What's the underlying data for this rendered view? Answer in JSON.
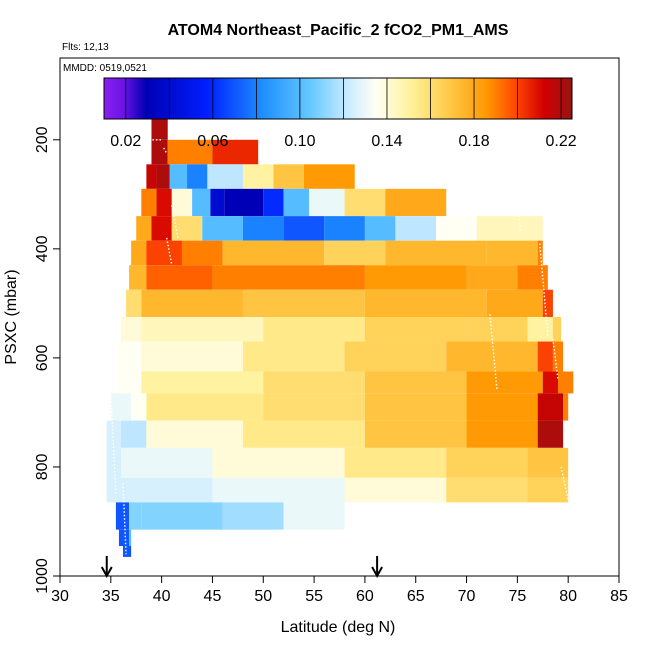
{
  "chart_data": {
    "type": "heatmap",
    "title": "ATOM4 Northeast_Pacific_2 fCO2_PM1_AMS",
    "annotations": {
      "flights": "Flts: 12,13",
      "dates": "MMDD: 0519,0521"
    },
    "xlabel": "Latitude (deg N)",
    "ylabel": "PSXC (mbar)",
    "xlim": [
      30,
      85
    ],
    "ylim": [
      1000,
      50
    ],
    "y_reversed": true,
    "grid": false,
    "x_ticks": [
      30,
      35,
      40,
      45,
      50,
      55,
      60,
      65,
      70,
      75,
      80,
      85
    ],
    "y_ticks": [
      200,
      400,
      600,
      800,
      1000
    ],
    "colorbar": {
      "range": [
        0.01,
        0.225
      ],
      "ticks": [
        0.02,
        0.06,
        0.1,
        0.14,
        0.18,
        0.22
      ],
      "tick_labels": [
        "0.02",
        "0.06",
        "0.10",
        "0.14",
        "0.18",
        "0.22"
      ]
    },
    "arrows_lat": [
      34.6,
      61.2
    ],
    "bands": [
      {
        "p": [
          160,
          200
        ],
        "segments": [
          [
            39.0,
            40.6,
            0.22
          ]
        ]
      },
      {
        "p": [
          200,
          245
        ],
        "segments": [
          [
            39.0,
            40.6,
            0.22
          ],
          [
            40.6,
            42.0,
            0.19
          ],
          [
            42.0,
            45.0,
            0.19
          ],
          [
            45.0,
            49.5,
            0.205
          ]
        ]
      },
      {
        "p": [
          245,
          290
        ],
        "segments": [
          [
            38.5,
            39.5,
            0.215
          ],
          [
            39.5,
            40.8,
            0.22
          ],
          [
            40.8,
            42.5,
            0.1
          ],
          [
            42.5,
            44.5,
            0.08
          ],
          [
            44.5,
            48.0,
            0.12
          ],
          [
            48.0,
            51.0,
            0.15
          ],
          [
            51.0,
            54.0,
            0.17
          ],
          [
            54.0,
            59.0,
            0.185
          ]
        ]
      },
      {
        "p": [
          290,
          340
        ],
        "segments": [
          [
            38.0,
            39.5,
            0.19
          ],
          [
            39.5,
            41.0,
            0.21
          ],
          [
            41.0,
            43.0,
            0.14
          ],
          [
            43.0,
            44.8,
            0.1
          ],
          [
            44.8,
            46.2,
            0.04
          ],
          [
            46.2,
            50.0,
            0.03
          ],
          [
            50.0,
            52.0,
            0.06
          ],
          [
            52.0,
            54.5,
            0.1
          ],
          [
            54.5,
            58.0,
            0.13
          ],
          [
            58.0,
            62.0,
            0.16
          ],
          [
            62.0,
            68.0,
            0.18
          ]
        ]
      },
      {
        "p": [
          340,
          385
        ],
        "segments": [
          [
            37.5,
            39.0,
            0.18
          ],
          [
            39.0,
            41.0,
            0.21
          ],
          [
            41.0,
            44.0,
            0.16
          ],
          [
            44.0,
            48.0,
            0.1
          ],
          [
            48.0,
            52.0,
            0.08
          ],
          [
            52.0,
            56.0,
            0.07
          ],
          [
            56.0,
            60.0,
            0.08
          ],
          [
            60.0,
            63.0,
            0.1
          ],
          [
            63.0,
            67.0,
            0.12
          ],
          [
            67.0,
            71.0,
            0.135
          ],
          [
            71.0,
            77.5,
            0.145
          ]
        ]
      },
      {
        "p": [
          385,
          430
        ],
        "segments": [
          [
            37.0,
            38.5,
            0.18
          ],
          [
            38.5,
            42.0,
            0.2
          ],
          [
            42.0,
            46.0,
            0.19
          ],
          [
            46.0,
            56.0,
            0.175
          ],
          [
            56.0,
            62.0,
            0.165
          ],
          [
            62.0,
            72.0,
            0.175
          ],
          [
            72.0,
            77.0,
            0.175
          ],
          [
            77.0,
            77.5,
            0.19
          ]
        ]
      },
      {
        "p": [
          430,
          475
        ],
        "segments": [
          [
            36.8,
            38.5,
            0.175
          ],
          [
            38.5,
            45.0,
            0.195
          ],
          [
            45.0,
            60.0,
            0.19
          ],
          [
            60.0,
            70.0,
            0.185
          ],
          [
            70.0,
            75.0,
            0.18
          ],
          [
            75.0,
            78.0,
            0.19
          ]
        ]
      },
      {
        "p": [
          475,
          525
        ],
        "segments": [
          [
            36.5,
            38.0,
            0.16
          ],
          [
            38.0,
            48.0,
            0.175
          ],
          [
            48.0,
            60.0,
            0.17
          ],
          [
            60.0,
            72.0,
            0.175
          ],
          [
            72.0,
            77.5,
            0.18
          ],
          [
            77.5,
            78.5,
            0.2
          ]
        ]
      },
      {
        "p": [
          525,
          570
        ],
        "segments": [
          [
            36.0,
            38.0,
            0.14
          ],
          [
            38.0,
            50.0,
            0.145
          ],
          [
            50.0,
            60.0,
            0.155
          ],
          [
            60.0,
            70.0,
            0.165
          ],
          [
            70.0,
            76.0,
            0.165
          ],
          [
            76.0,
            78.5,
            0.15
          ],
          [
            78.5,
            79.3,
            0.165
          ]
        ]
      },
      {
        "p": [
          570,
          625
        ],
        "segments": [
          [
            35.5,
            38.0,
            0.135
          ],
          [
            38.0,
            48.0,
            0.14
          ],
          [
            48.0,
            58.0,
            0.155
          ],
          [
            58.0,
            68.0,
            0.165
          ],
          [
            68.0,
            77.0,
            0.175
          ],
          [
            77.0,
            78.5,
            0.2
          ],
          [
            78.5,
            79.5,
            0.19
          ]
        ]
      },
      {
        "p": [
          625,
          665
        ],
        "segments": [
          [
            35.5,
            38.0,
            0.135
          ],
          [
            38.0,
            50.0,
            0.15
          ],
          [
            50.0,
            60.0,
            0.16
          ],
          [
            60.0,
            70.0,
            0.17
          ],
          [
            70.0,
            77.5,
            0.185
          ],
          [
            77.5,
            79.0,
            0.21
          ],
          [
            79.0,
            80.5,
            0.19
          ]
        ]
      },
      {
        "p": [
          665,
          715
        ],
        "segments": [
          [
            35.0,
            37.0,
            0.13
          ],
          [
            37.0,
            38.5,
            0.135
          ],
          [
            38.5,
            50.0,
            0.155
          ],
          [
            50.0,
            60.0,
            0.16
          ],
          [
            60.0,
            70.0,
            0.17
          ],
          [
            70.0,
            77.0,
            0.185
          ],
          [
            77.0,
            79.5,
            0.215
          ],
          [
            79.5,
            80.0,
            0.19
          ]
        ]
      },
      {
        "p": [
          715,
          765
        ],
        "segments": [
          [
            34.6,
            36.0,
            0.125
          ],
          [
            36.0,
            38.5,
            0.12
          ],
          [
            38.5,
            48.0,
            0.14
          ],
          [
            48.0,
            60.0,
            0.155
          ],
          [
            60.0,
            70.0,
            0.17
          ],
          [
            70.0,
            77.0,
            0.185
          ],
          [
            77.0,
            79.5,
            0.22
          ]
        ]
      },
      {
        "p": [
          765,
          820
        ],
        "segments": [
          [
            34.6,
            36.0,
            0.125
          ],
          [
            36.0,
            45.0,
            0.13
          ],
          [
            45.0,
            58.0,
            0.14
          ],
          [
            58.0,
            68.0,
            0.155
          ],
          [
            68.0,
            76.0,
            0.165
          ],
          [
            76.0,
            80.0,
            0.17
          ]
        ]
      },
      {
        "p": [
          820,
          865
        ],
        "segments": [
          [
            34.6,
            36.0,
            0.125
          ],
          [
            36.0,
            45.0,
            0.125
          ],
          [
            45.0,
            58.0,
            0.13
          ],
          [
            58.0,
            68.0,
            0.14
          ],
          [
            68.0,
            76.0,
            0.16
          ],
          [
            76.0,
            80.0,
            0.165
          ]
        ]
      },
      {
        "p": [
          865,
          915
        ],
        "segments": [
          [
            35.5,
            36.8,
            0.07
          ],
          [
            36.8,
            38.0,
            0.11
          ],
          [
            38.0,
            46.0,
            0.11
          ],
          [
            46.0,
            52.0,
            0.115
          ],
          [
            52.0,
            58.0,
            0.13
          ]
        ]
      },
      {
        "p": [
          915,
          945
        ],
        "segments": [
          [
            35.8,
            36.8,
            0.07
          ],
          [
            36.8,
            37.0,
            0.1
          ]
        ]
      },
      {
        "p": [
          945,
          965
        ],
        "segments": [
          [
            36.2,
            37.0,
            0.07
          ]
        ]
      }
    ],
    "tracks": [
      {
        "lat": [
          39.1,
          40.0
        ],
        "p": [
          200,
          200
        ]
      },
      {
        "lat": [
          40.2,
          40.5
        ],
        "p": [
          215,
          225
        ]
      },
      {
        "lat": [
          41.0,
          41.6
        ],
        "p": [
          320,
          380
        ]
      },
      {
        "lat": [
          40.5,
          41.0
        ],
        "p": [
          380,
          430
        ]
      },
      {
        "lat": [
          77.2,
          78.0
        ],
        "p": [
          390,
          560
        ]
      },
      {
        "lat": [
          78.5,
          79.0
        ],
        "p": [
          565,
          640
        ]
      },
      {
        "lat": [
          72.3,
          73.0
        ],
        "p": [
          520,
          660
        ]
      },
      {
        "lat": [
          75.0,
          75.3
        ],
        "p": [
          300,
          370
        ]
      },
      {
        "lat": [
          79.3,
          80.0
        ],
        "p": [
          800,
          860
        ]
      },
      {
        "lat": [
          35.0,
          35.5
        ],
        "p": [
          660,
          850
        ]
      },
      {
        "lat": [
          36.2,
          36.5
        ],
        "p": [
          830,
          960
        ]
      }
    ]
  }
}
